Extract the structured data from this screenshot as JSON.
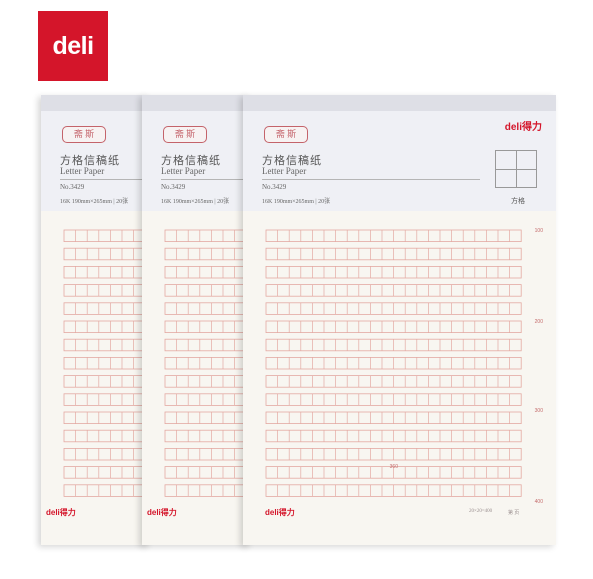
{
  "logo": {
    "text": "deli"
  },
  "product": {
    "seal_text": "斋 斯",
    "title_cn": "方格信稿纸",
    "title_en": "Letter Paper",
    "model": "No.3429",
    "spec": "16K 190mm×265mm | 20张",
    "brand": "deli得力",
    "grid_icon_label": "方格",
    "footer_brand": "deli得力",
    "footer_info": "20×20=400",
    "footer_page": "第   页",
    "grid_marks": [
      "100",
      "200",
      "300",
      "400"
    ],
    "grid_center_mark": "360"
  },
  "colors": {
    "brand_red": "#d4152a",
    "grid_line": "#e3a9a2",
    "paper": "#f8f6f1",
    "header_band": "#eff0f5"
  }
}
